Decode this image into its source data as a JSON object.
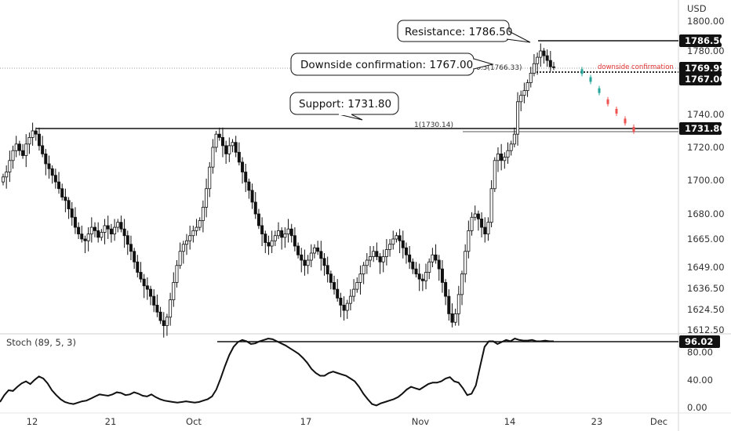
{
  "chart_data": [
    {
      "type": "candlestick",
      "currency_label": "USD",
      "y_ticks": [
        1800.0,
        1780.0,
        1740.0,
        1720.0,
        1700.0,
        1680.0,
        1665.0,
        1649.0,
        1636.5,
        1624.5,
        1612.5
      ],
      "y_tick_labels": [
        "1800.00",
        "1780.00",
        "1740.00",
        "1720.00",
        "1700.00",
        "1680.00",
        "1665.00",
        "1649.00",
        "1636.50",
        "1624.50",
        "1612.50"
      ],
      "x_tick_labels": [
        "12",
        "21",
        "Oct",
        "17",
        "Nov",
        "14",
        "23",
        "Dec"
      ],
      "price_badges": [
        {
          "value": 1786.5,
          "label": "1786.50"
        },
        {
          "value": 1769.99,
          "label": "1769.99"
        },
        {
          "value": 1767.0,
          "label": "1767.00"
        },
        {
          "value": 1731.8,
          "label": "1731.80"
        }
      ],
      "annotations": [
        {
          "text": "Resistance: 1786.50",
          "price": 1786.5
        },
        {
          "text": "Downside confirmation: 1767.00",
          "price": 1767.0
        },
        {
          "text": "Support: 1731.80",
          "price": 1731.8
        }
      ],
      "fib_labels": [
        {
          "text": "0.5(1766.33)",
          "price": 1766.33
        },
        {
          "text": "1(1730.14)",
          "price": 1730.14
        }
      ],
      "projection_label": "downside confirmation",
      "close_path": [
        1702,
        1705,
        1712,
        1718,
        1722,
        1718,
        1715,
        1722,
        1726,
        1730,
        1728,
        1721,
        1716,
        1710,
        1707,
        1703,
        1699,
        1695,
        1690,
        1688,
        1683,
        1678,
        1672,
        1668,
        1665,
        1664,
        1668,
        1672,
        1670,
        1666,
        1669,
        1673,
        1671,
        1668,
        1672,
        1675,
        1671,
        1667,
        1662,
        1658,
        1652,
        1646,
        1642,
        1638,
        1636,
        1632,
        1627,
        1623,
        1618,
        1615,
        1620,
        1630,
        1640,
        1650,
        1658,
        1662,
        1664,
        1667,
        1670,
        1672,
        1676,
        1684,
        1695,
        1708,
        1720,
        1728,
        1726,
        1721,
        1716,
        1721,
        1723,
        1717,
        1711,
        1705,
        1699,
        1694,
        1687,
        1680,
        1673,
        1668,
        1663,
        1661,
        1664,
        1667,
        1670,
        1666,
        1668,
        1671,
        1667,
        1661,
        1656,
        1653,
        1650,
        1653,
        1657,
        1660,
        1658,
        1654,
        1650,
        1645,
        1640,
        1636,
        1631,
        1627,
        1624,
        1628,
        1632,
        1636,
        1640,
        1645,
        1650,
        1653,
        1655,
        1658,
        1655,
        1652,
        1655,
        1659,
        1662,
        1665,
        1667,
        1664,
        1660,
        1656,
        1652,
        1648,
        1645,
        1642,
        1641,
        1646,
        1652,
        1656,
        1653,
        1648,
        1640,
        1632,
        1622,
        1617,
        1622,
        1633,
        1645,
        1658,
        1670,
        1678,
        1680,
        1677,
        1672,
        1668,
        1675,
        1695,
        1712,
        1716,
        1712,
        1714,
        1718,
        1722,
        1728,
        1748,
        1752,
        1755,
        1760,
        1766,
        1772,
        1776,
        1780,
        1777,
        1774,
        1770,
        1769.99
      ],
      "projection_path": [
        1767,
        1762,
        1755,
        1748,
        1742,
        1736,
        1731
      ],
      "indicator": {
        "name": "Stoch (89, 5, 3)",
        "y_tick_labels": [
          "80.00",
          "40.00",
          "0.00"
        ],
        "y_ticks": [
          80,
          40,
          0
        ],
        "last_value": 96.02,
        "last_label": "96.02",
        "values": [
          8,
          18,
          25,
          24,
          30,
          35,
          38,
          34,
          40,
          45,
          42,
          35,
          25,
          18,
          12,
          8,
          6,
          5,
          7,
          9,
          10,
          13,
          16,
          19,
          18,
          17,
          19,
          22,
          21,
          18,
          19,
          22,
          20,
          17,
          16,
          19,
          15,
          12,
          10,
          9,
          8,
          7,
          8,
          9,
          8,
          7,
          8,
          10,
          12,
          16,
          26,
          42,
          60,
          76,
          88,
          95,
          98,
          96,
          92,
          93,
          96,
          98,
          100,
          99,
          96,
          93,
          90,
          86,
          82,
          78,
          72,
          65,
          56,
          50,
          46,
          46,
          50,
          52,
          50,
          48,
          46,
          42,
          38,
          30,
          20,
          12,
          5,
          3,
          6,
          8,
          10,
          12,
          15,
          20,
          26,
          30,
          28,
          26,
          30,
          34,
          36,
          36,
          38,
          42,
          44,
          38,
          36,
          28,
          18,
          20,
          32,
          60,
          88,
          96,
          96,
          92,
          95,
          98,
          96,
          100,
          98,
          97,
          97,
          98,
          96,
          96,
          97,
          96,
          96.02
        ]
      }
    }
  ]
}
